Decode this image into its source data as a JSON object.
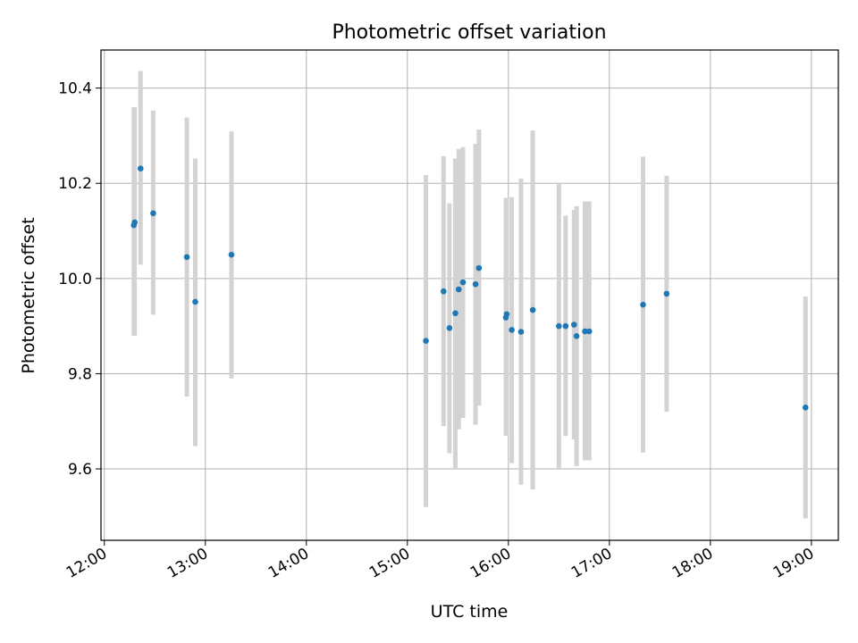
{
  "chart_data": {
    "type": "scatter",
    "title": "Photometric offset variation",
    "xlabel": "UTC time",
    "ylabel": "Photometric offset",
    "xlim": [
      "11:58",
      "19:16"
    ],
    "ylim": [
      9.45,
      10.48
    ],
    "grid": true,
    "x_ticks": [
      "12:00",
      "13:00",
      "14:00",
      "15:00",
      "16:00",
      "17:00",
      "18:00",
      "19:00"
    ],
    "y_ticks": [
      "9.6",
      "9.8",
      "10.0",
      "10.2",
      "10.4"
    ],
    "marker_color": "#1f77b4",
    "errorbar_color": "#d3d3d3",
    "points": [
      {
        "t": "12:17:30",
        "y": 10.112,
        "ylo": 9.88,
        "yhi": 10.36
      },
      {
        "t": "12:18:00",
        "y": 10.118,
        "ylo": 9.88,
        "yhi": 10.36
      },
      {
        "t": "12:21:30",
        "y": 10.231,
        "ylo": 10.029,
        "yhi": 10.436
      },
      {
        "t": "12:29:00",
        "y": 10.137,
        "ylo": 9.924,
        "yhi": 10.353
      },
      {
        "t": "12:49:00",
        "y": 10.045,
        "ylo": 9.752,
        "yhi": 10.338
      },
      {
        "t": "12:54:00",
        "y": 9.951,
        "ylo": 9.648,
        "yhi": 10.252
      },
      {
        "t": "13:15:30",
        "y": 10.05,
        "ylo": 9.79,
        "yhi": 10.309
      },
      {
        "t": "15:11:00",
        "y": 9.869,
        "ylo": 9.52,
        "yhi": 10.217
      },
      {
        "t": "15:21:30",
        "y": 9.973,
        "ylo": 9.69,
        "yhi": 10.257
      },
      {
        "t": "15:25:00",
        "y": 9.896,
        "ylo": 9.633,
        "yhi": 10.158
      },
      {
        "t": "15:28:30",
        "y": 9.927,
        "ylo": 9.602,
        "yhi": 10.252
      },
      {
        "t": "15:30:30",
        "y": 9.977,
        "ylo": 9.683,
        "yhi": 10.272
      },
      {
        "t": "15:33:00",
        "y": 9.992,
        "ylo": 9.707,
        "yhi": 10.276
      },
      {
        "t": "15:40:30",
        "y": 9.988,
        "ylo": 9.693,
        "yhi": 10.283
      },
      {
        "t": "15:42:30",
        "y": 10.022,
        "ylo": 9.733,
        "yhi": 10.313
      },
      {
        "t": "15:58:30",
        "y": 9.918,
        "ylo": 9.67,
        "yhi": 10.169
      },
      {
        "t": "15:59:00",
        "y": 9.925,
        "ylo": 9.67,
        "yhi": 10.169
      },
      {
        "t": "16:02:00",
        "y": 9.892,
        "ylo": 9.612,
        "yhi": 10.171
      },
      {
        "t": "16:07:30",
        "y": 9.888,
        "ylo": 9.567,
        "yhi": 10.21
      },
      {
        "t": "16:14:30",
        "y": 9.934,
        "ylo": 9.557,
        "yhi": 10.311
      },
      {
        "t": "16:30:00",
        "y": 9.9,
        "ylo": 9.6,
        "yhi": 10.2
      },
      {
        "t": "16:34:00",
        "y": 9.9,
        "ylo": 9.669,
        "yhi": 10.132
      },
      {
        "t": "16:39:00",
        "y": 9.903,
        "ylo": 9.662,
        "yhi": 10.144
      },
      {
        "t": "16:40:30",
        "y": 9.879,
        "ylo": 9.606,
        "yhi": 10.152
      },
      {
        "t": "16:45:30",
        "y": 9.889,
        "ylo": 9.618,
        "yhi": 10.162
      },
      {
        "t": "16:48:00",
        "y": 9.889,
        "ylo": 9.618,
        "yhi": 10.162
      },
      {
        "t": "17:20:00",
        "y": 9.945,
        "ylo": 9.634,
        "yhi": 10.256
      },
      {
        "t": "17:34:00",
        "y": 9.968,
        "ylo": 9.72,
        "yhi": 10.216
      },
      {
        "t": "18:56:30",
        "y": 9.729,
        "ylo": 9.496,
        "yhi": 9.962
      }
    ]
  }
}
